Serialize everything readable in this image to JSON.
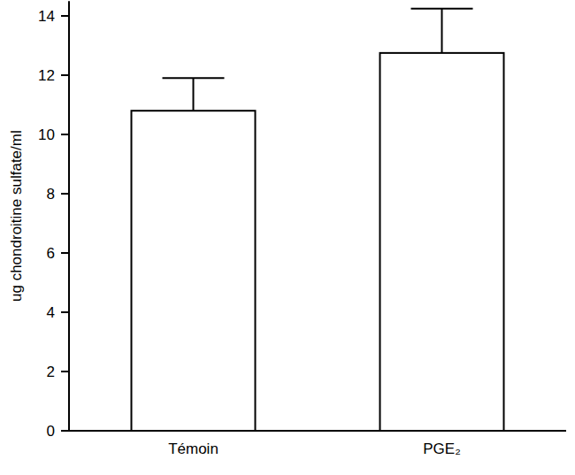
{
  "chart_data": {
    "type": "bar",
    "y_label": "ug chondroitine sulfate/ml",
    "categories": [
      "Témoin",
      "PGE₂"
    ],
    "values": [
      10.8,
      12.75
    ],
    "errors": [
      1.1,
      1.5
    ],
    "color": "#ffffff",
    "ylim": [
      0,
      14.5
    ],
    "yticks": [
      0,
      2,
      4,
      6,
      8,
      10,
      12,
      14
    ],
    "grid": false
  }
}
